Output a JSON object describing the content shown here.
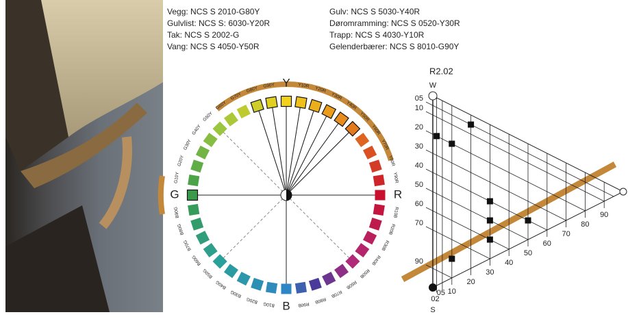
{
  "specs": [
    "Vegg: NCS S 2010-G80Y",
    "Gulvlist: NCS S: 6030-Y20R",
    "Tak: NCS S 2002-G",
    "Vang: NCS S 4050-Y50R",
    "Gulv: NCS S 5030-Y40R",
    "Døromramming: NCS S 0520-Y30R",
    "Trapp: NCS S 4030-Y10R",
    "Gelenderbærer: NCS S 8010-G90Y"
  ],
  "circle": {
    "hues": [
      "Y",
      "Y10R",
      "Y20R",
      "Y30R",
      "Y40R",
      "Y50R",
      "Y60R",
      "Y70R",
      "Y80R",
      "Y90R",
      "R",
      "R10B",
      "R20B",
      "R30B",
      "R40B",
      "R50B",
      "R60B",
      "R70B",
      "R80B",
      "R90B",
      "B",
      "B10G",
      "B20G",
      "B30G",
      "B40G",
      "B50G",
      "B60G",
      "B70G",
      "B80G",
      "B90G",
      "G",
      "G10Y",
      "G20Y",
      "G30Y",
      "G40Y",
      "G50Y",
      "G60Y",
      "G70Y",
      "G80Y",
      "G90Y"
    ],
    "highlighted": [
      38,
      39,
      0,
      1,
      2,
      3,
      4,
      5
    ]
  },
  "triangle": {
    "title": "R2.02",
    "white": "W",
    "black": "S",
    "blackness_ticks": [
      {
        "value": 5,
        "label": "05"
      },
      10,
      20,
      30,
      40,
      50,
      60,
      70,
      90
    ],
    "chromaticness_ticks": [
      {
        "value": 2,
        "label": "02"
      },
      {
        "value": 5,
        "label": "05"
      },
      10,
      20,
      30,
      40,
      50,
      60,
      70,
      80,
      90
    ],
    "points": [
      {
        "s": 20,
        "c": 2
      },
      {
        "s": 20,
        "c": 10
      },
      {
        "s": 60,
        "c": 30
      },
      {
        "s": 40,
        "c": 50
      },
      {
        "s": 50,
        "c": 30
      },
      {
        "s": 5,
        "c": 20
      },
      {
        "s": 40,
        "c": 30
      },
      {
        "s": 80,
        "c": 10
      }
    ]
  }
}
